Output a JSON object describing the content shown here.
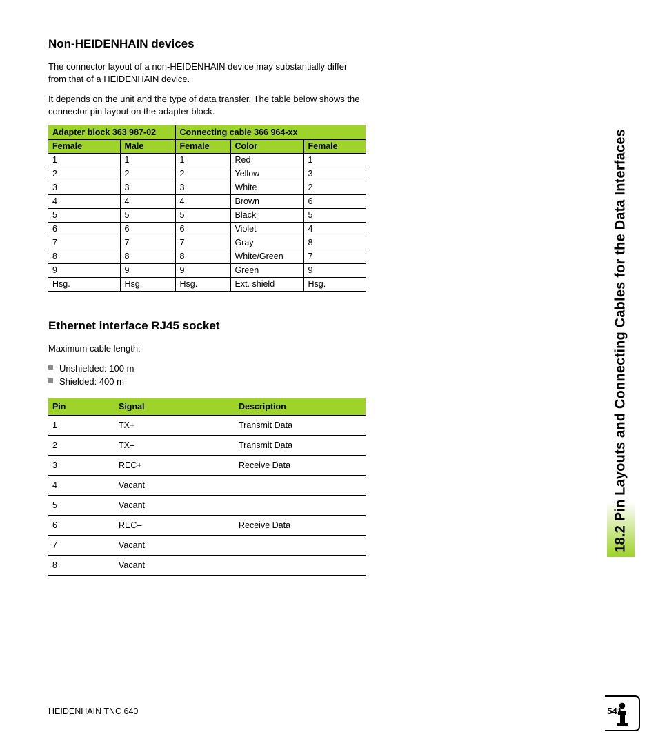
{
  "colors": {
    "accent": "#9ed329",
    "bullet": "#8a8a8a",
    "text": "#000000",
    "background": "#ffffff"
  },
  "side_tab": "18.2 Pin Layouts and Connecting Cables for the Data Interfaces",
  "section1": {
    "title": "Non-HEIDENHAIN devices",
    "para1": "The connector layout of a non-HEIDENHAIN device may substantially differ from that of a HEIDENHAIN device.",
    "para2": "It depends on the unit and the type of data transfer. The table below shows the connector pin layout on the adapter block."
  },
  "table1": {
    "group_headers": [
      "Adapter block 363 987-02",
      "Connecting cable 366 964-xx"
    ],
    "group_spans": [
      2,
      3
    ],
    "columns": [
      "Female",
      "Male",
      "Female",
      "Color",
      "Female"
    ],
    "rows": [
      [
        "1",
        "1",
        "1",
        "Red",
        "1"
      ],
      [
        "2",
        "2",
        "2",
        "Yellow",
        "3"
      ],
      [
        "3",
        "3",
        "3",
        "White",
        "2"
      ],
      [
        "4",
        "4",
        "4",
        "Brown",
        "6"
      ],
      [
        "5",
        "5",
        "5",
        "Black",
        "5"
      ],
      [
        "6",
        "6",
        "6",
        "Violet",
        "4"
      ],
      [
        "7",
        "7",
        "7",
        "Gray",
        "8"
      ],
      [
        "8",
        "8",
        "8",
        "White/Green",
        "7"
      ],
      [
        "9",
        "9",
        "9",
        "Green",
        "9"
      ],
      [
        "Hsg.",
        "Hsg.",
        "Hsg.",
        "Ext. shield",
        "Hsg."
      ]
    ]
  },
  "section2": {
    "title": "Ethernet interface RJ45 socket",
    "lead": "Maximum cable length:",
    "bullets": [
      "Unshielded: 100 m",
      "Shielded: 400 m"
    ]
  },
  "table2": {
    "columns": [
      "Pin",
      "Signal",
      "Description"
    ],
    "rows": [
      [
        "1",
        "TX+",
        "Transmit Data"
      ],
      [
        "2",
        "TX–",
        "Transmit Data"
      ],
      [
        "3",
        "REC+",
        "Receive Data"
      ],
      [
        "4",
        "Vacant",
        ""
      ],
      [
        "5",
        "Vacant",
        ""
      ],
      [
        "6",
        "REC–",
        "Receive Data"
      ],
      [
        "7",
        "Vacant",
        ""
      ],
      [
        "8",
        "Vacant",
        ""
      ]
    ]
  },
  "footer": {
    "doc": "HEIDENHAIN TNC 640",
    "page": "541"
  }
}
